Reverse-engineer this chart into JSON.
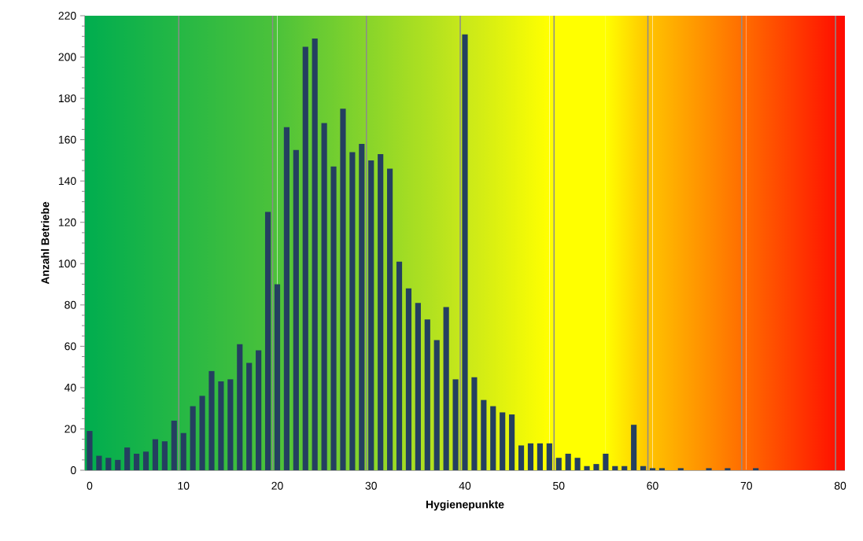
{
  "chart_data": {
    "type": "bar",
    "xlabel": "Hygienepunkte",
    "ylabel": "Anzahl Betriebe",
    "categories": [
      "0",
      null,
      null,
      null,
      null,
      null,
      null,
      null,
      null,
      null,
      "10",
      null,
      null,
      null,
      null,
      null,
      null,
      null,
      null,
      null,
      "20",
      null,
      null,
      null,
      null,
      null,
      null,
      null,
      null,
      null,
      "30",
      null,
      null,
      null,
      null,
      null,
      null,
      null,
      null,
      null,
      "40",
      null,
      null,
      null,
      null,
      null,
      null,
      null,
      null,
      null,
      "50",
      null,
      null,
      null,
      null,
      null,
      null,
      null,
      null,
      null,
      "60",
      null,
      null,
      null,
      null,
      null,
      null,
      null,
      null,
      null,
      "70",
      null,
      null,
      null,
      null,
      null,
      null,
      null,
      null,
      null,
      "80"
    ],
    "values": [
      19,
      7,
      6,
      5,
      11,
      8,
      9,
      15,
      14,
      24,
      18,
      31,
      36,
      48,
      43,
      44,
      61,
      52,
      58,
      125,
      90,
      166,
      155,
      205,
      209,
      168,
      147,
      175,
      154,
      158,
      150,
      153,
      146,
      101,
      88,
      81,
      73,
      63,
      79,
      44,
      211,
      45,
      34,
      31,
      28,
      27,
      12,
      13,
      13,
      13,
      6,
      8,
      6,
      2,
      3,
      8,
      2,
      2,
      22,
      2,
      1,
      1,
      0,
      1,
      0,
      0,
      1,
      0,
      1,
      0,
      0,
      1,
      0,
      0,
      0,
      0,
      0,
      0,
      0,
      0,
      0
    ],
    "color": "#243f60",
    "ylim": [
      0,
      220
    ],
    "yticks": [
      0,
      20,
      40,
      60,
      80,
      100,
      120,
      140,
      160,
      180,
      200,
      220
    ],
    "grid": "x"
  }
}
